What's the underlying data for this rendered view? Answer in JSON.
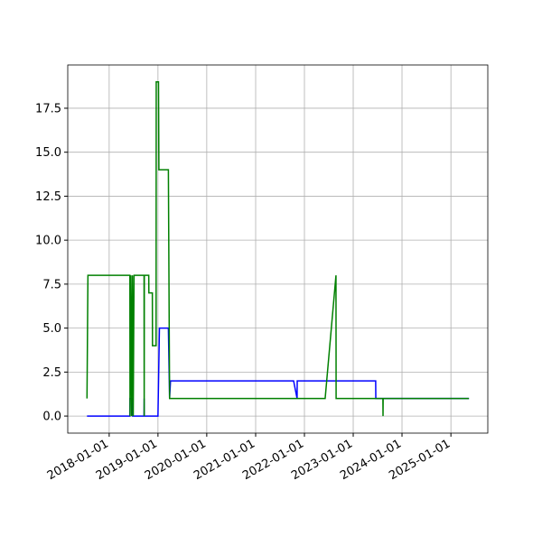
{
  "chart_data": {
    "type": "line",
    "xlim": [
      "2017-02-25",
      "2025-10-04"
    ],
    "xticks": [
      "2018-01-01",
      "2019-01-01",
      "2020-01-01",
      "2021-01-01",
      "2022-01-01",
      "2023-01-01",
      "2024-01-01",
      "2025-01-01"
    ],
    "ylim": [
      -0.97,
      19.96
    ],
    "yticks": [
      {
        "value": 0,
        "label": "0.0"
      },
      {
        "value": 2.5,
        "label": "2.5"
      },
      {
        "value": 5,
        "label": "5.0"
      },
      {
        "value": 7.5,
        "label": "7.5"
      },
      {
        "value": 10,
        "label": "10.0"
      },
      {
        "value": 12.5,
        "label": "12.5"
      },
      {
        "value": 15,
        "label": "15.0"
      },
      {
        "value": 17.5,
        "label": "17.5"
      }
    ],
    "grid": true,
    "series": [
      {
        "color": "#0000ff",
        "x": [
          "2017-07-19",
          "2018-06-05",
          "2018-06-06",
          "2018-06-25",
          "2018-06-26",
          "2018-09-19",
          "2018-09-20",
          "2018-09-21",
          "2019-01-01",
          "2019-01-12",
          "2019-03-20",
          "2019-03-29",
          "2019-04-05",
          "2021-10-12",
          "2021-11-07",
          "2021-11-08",
          "2023-06-18",
          "2023-06-19",
          "2025-05-16"
        ],
        "values": [
          0,
          0,
          1,
          1,
          0,
          0,
          1,
          0,
          0,
          5,
          5,
          1,
          2,
          2,
          1,
          2,
          2,
          1,
          1
        ]
      },
      {
        "color": "#008000",
        "x": [
          "2017-07-19",
          "2017-07-26",
          "2018-06-05",
          "2018-06-06",
          "2018-06-12",
          "2018-06-18",
          "2018-06-24",
          "2018-06-30",
          "2018-07-06",
          "2018-09-19",
          "2018-09-20",
          "2018-09-21",
          "2018-10-24",
          "2018-10-25",
          "2018-11-20",
          "2018-11-21",
          "2018-12-18",
          "2018-12-19",
          "2019-01-05",
          "2019-01-08",
          "2019-03-20",
          "2019-03-29",
          "2022-06-05",
          "2022-08-25",
          "2022-08-26",
          "2023-08-11",
          "2023-08-12",
          "2023-08-13",
          "2025-05-16"
        ],
        "values": [
          1,
          8,
          8,
          0,
          8,
          0,
          8,
          0,
          8,
          8,
          0,
          8,
          8,
          7,
          7,
          4,
          4,
          19,
          19,
          14,
          14,
          1,
          1,
          8,
          1,
          1,
          0,
          1,
          1
        ]
      }
    ]
  }
}
